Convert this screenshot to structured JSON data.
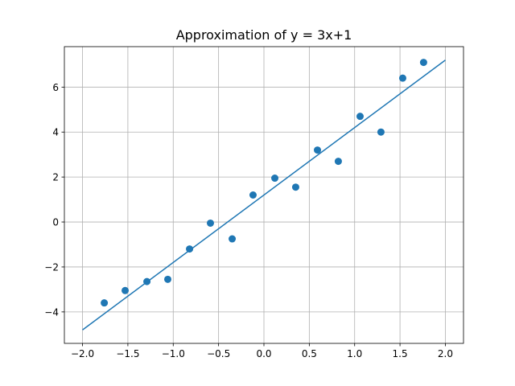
{
  "chart_data": {
    "type": "scatter",
    "title": "Approximation of y = 3x+1",
    "xlabel": "",
    "ylabel": "",
    "xlim": [
      -2.2,
      2.2
    ],
    "ylim": [
      -5.4,
      7.8
    ],
    "grid": true,
    "legend": "none",
    "x_ticks": [
      -2.0,
      -1.5,
      -1.0,
      -0.5,
      0.0,
      0.5,
      1.0,
      1.5,
      2.0
    ],
    "x_tick_labels": [
      "−2.0",
      "−1.5",
      "−1.0",
      "−0.5",
      "0.0",
      "0.5",
      "1.0",
      "1.5",
      "2.0"
    ],
    "y_ticks": [
      -4,
      -2,
      0,
      2,
      4,
      6
    ],
    "y_tick_labels": [
      "−4",
      "−2",
      "0",
      "2",
      "4",
      "6"
    ],
    "colors": {
      "series": "#1f77b4",
      "grid": "#b0b0b0",
      "axis": "#000000"
    },
    "scatter": {
      "x": [
        -1.76,
        -1.53,
        -1.29,
        -1.06,
        -0.82,
        -0.59,
        -0.35,
        -0.12,
        0.12,
        0.35,
        0.59,
        0.82,
        1.06,
        1.29,
        1.53,
        1.76
      ],
      "y": [
        -3.6,
        -3.05,
        -2.65,
        -2.55,
        -1.2,
        -0.05,
        -0.75,
        1.2,
        1.95,
        1.55,
        3.2,
        2.7,
        4.7,
        4.0,
        6.4,
        7.1
      ]
    },
    "line": {
      "x": [
        -2.0,
        2.0
      ],
      "y": [
        -4.8,
        7.2
      ]
    }
  }
}
